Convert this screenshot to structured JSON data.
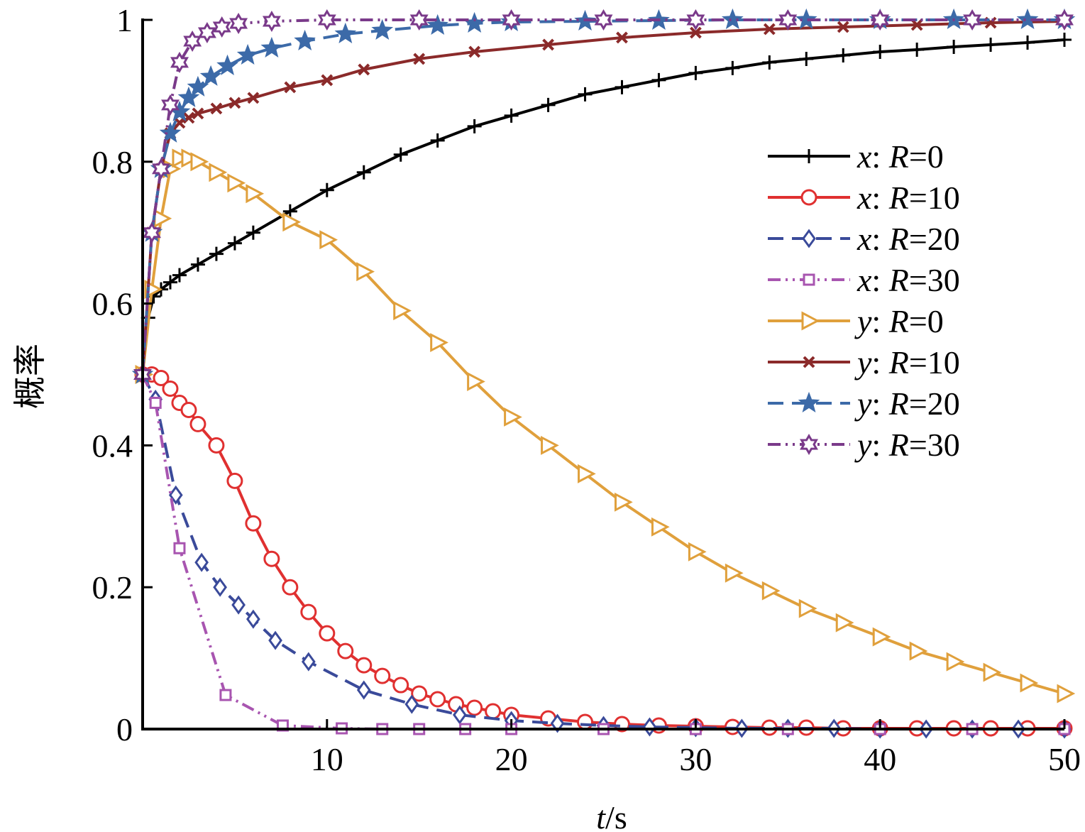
{
  "chart_data": {
    "type": "line",
    "title": "",
    "xlabel_var": "t",
    "xlabel_unit": "/s",
    "ylabel": "概率",
    "xlim": [
      0,
      50
    ],
    "ylim": [
      0,
      1
    ],
    "xticks": [
      10,
      20,
      30,
      40,
      50
    ],
    "xtick_labels": [
      "10",
      "20",
      "30",
      "40",
      "50"
    ],
    "yticks": [
      0,
      0.2,
      0.4,
      0.6,
      0.8,
      1
    ],
    "ytick_labels": [
      "0",
      "0.2",
      "0.4",
      "0.6",
      "0.8",
      "1"
    ],
    "grid": false,
    "legend_position": "right",
    "series": [
      {
        "name": "x: R=0",
        "var": "x",
        "param": "R",
        "value_label": "=0",
        "color": "#000000",
        "dash": "solid",
        "marker": "plus",
        "x": [
          0,
          0.3,
          0.6,
          1,
          1.5,
          2,
          3,
          4,
          5,
          6,
          8,
          10,
          12,
          14,
          16,
          18,
          20,
          22,
          24,
          26,
          28,
          30,
          32,
          34,
          36,
          38,
          40,
          42,
          44,
          46,
          48,
          50
        ],
        "y": [
          0.5,
          0.58,
          0.61,
          0.62,
          0.63,
          0.64,
          0.655,
          0.67,
          0.685,
          0.7,
          0.73,
          0.76,
          0.785,
          0.81,
          0.83,
          0.85,
          0.865,
          0.88,
          0.895,
          0.905,
          0.915,
          0.925,
          0.932,
          0.94,
          0.945,
          0.95,
          0.955,
          0.958,
          0.962,
          0.965,
          0.968,
          0.972
        ]
      },
      {
        "name": "x: R=10",
        "var": "x",
        "param": "R",
        "value_label": "=10",
        "color": "#e03030",
        "dash": "solid",
        "marker": "circle",
        "x": [
          0,
          0.5,
          1,
          1.5,
          2,
          2.5,
          3,
          4,
          5,
          6,
          7,
          8,
          9,
          10,
          11,
          12,
          13,
          14,
          15,
          16,
          17,
          18,
          19,
          20,
          22,
          24,
          26,
          28,
          30,
          32,
          34,
          36,
          38,
          40,
          42,
          44,
          46,
          48,
          50
        ],
        "y": [
          0.5,
          0.5,
          0.495,
          0.48,
          0.46,
          0.45,
          0.43,
          0.4,
          0.35,
          0.29,
          0.24,
          0.2,
          0.165,
          0.135,
          0.11,
          0.09,
          0.075,
          0.062,
          0.05,
          0.042,
          0.035,
          0.03,
          0.025,
          0.02,
          0.015,
          0.01,
          0.007,
          0.005,
          0.004,
          0.003,
          0.002,
          0.002,
          0.001,
          0.001,
          0.001,
          0.001,
          0.001,
          0.001,
          0.001
        ]
      },
      {
        "name": "x: R=20",
        "var": "x",
        "param": "R",
        "value_label": "=20",
        "color": "#3a4a9a",
        "dash": "dash",
        "marker": "diamond",
        "x": [
          0,
          0.7,
          1.8,
          3.2,
          4.2,
          5.2,
          6,
          7.2,
          9,
          12,
          14.6,
          17.2,
          20,
          22.5,
          25,
          27.5,
          30,
          32.5,
          35,
          37.5,
          40,
          42.5,
          45,
          47.5,
          50
        ],
        "y": [
          0.5,
          0.465,
          0.33,
          0.235,
          0.2,
          0.175,
          0.155,
          0.125,
          0.095,
          0.055,
          0.035,
          0.02,
          0.012,
          0.008,
          0.005,
          0.003,
          0.002,
          0.001,
          0.001,
          0.001,
          0.0,
          0.0,
          0.0,
          0.0,
          0.0
        ]
      },
      {
        "name": "x: R=30",
        "var": "x",
        "param": "R",
        "value_label": "=30",
        "color": "#a855b0",
        "dash": "dashdotdot",
        "marker": "square",
        "x": [
          0,
          0.7,
          2,
          4.5,
          7.6,
          10.8,
          13,
          15,
          17.5,
          20,
          25,
          30,
          35,
          40,
          45,
          50
        ],
        "y": [
          0.5,
          0.46,
          0.255,
          0.048,
          0.005,
          0.001,
          0.0,
          0.0,
          0.0,
          0.0,
          0.0,
          0.0,
          0.0,
          0.0,
          0.0,
          0.0
        ]
      },
      {
        "name": "y: R=0",
        "var": "y",
        "param": "R",
        "value_label": "=0",
        "color": "#e0a03c",
        "dash": "solid",
        "marker": "triangle-right",
        "x": [
          0,
          0.5,
          1,
          1.5,
          2,
          2.5,
          3,
          4,
          5,
          6,
          8,
          10,
          12,
          14,
          16,
          18,
          20,
          22,
          24,
          26,
          28,
          30,
          32,
          34,
          36,
          38,
          40,
          42,
          44,
          46,
          48,
          50
        ],
        "y": [
          0.5,
          0.62,
          0.72,
          0.79,
          0.805,
          0.805,
          0.8,
          0.785,
          0.77,
          0.755,
          0.715,
          0.69,
          0.645,
          0.59,
          0.545,
          0.49,
          0.44,
          0.4,
          0.36,
          0.32,
          0.285,
          0.25,
          0.22,
          0.195,
          0.17,
          0.15,
          0.13,
          0.11,
          0.095,
          0.08,
          0.065,
          0.05
        ]
      },
      {
        "name": "y: R=10",
        "var": "y",
        "param": "R",
        "value_label": "=10",
        "color": "#8b2a2a",
        "dash": "solid",
        "marker": "cross",
        "x": [
          0,
          0.5,
          1,
          1.5,
          2,
          2.5,
          3,
          4,
          5,
          6,
          8,
          10,
          12,
          15,
          18,
          22,
          26,
          30,
          34,
          38,
          42,
          46,
          50
        ],
        "y": [
          0.5,
          0.7,
          0.79,
          0.84,
          0.855,
          0.862,
          0.868,
          0.875,
          0.883,
          0.89,
          0.905,
          0.915,
          0.93,
          0.945,
          0.955,
          0.965,
          0.975,
          0.982,
          0.987,
          0.99,
          0.993,
          0.996,
          0.998
        ]
      },
      {
        "name": "y: R=20",
        "var": "y",
        "param": "R",
        "value_label": "=20",
        "color": "#3c6aa8",
        "dash": "dash",
        "marker": "star",
        "x": [
          0,
          0.5,
          1,
          1.5,
          2,
          2.5,
          3,
          3.7,
          4.6,
          5.7,
          7,
          8.8,
          11,
          13,
          16,
          18,
          20,
          24,
          28,
          32,
          36,
          40,
          44,
          48,
          50
        ],
        "y": [
          0.5,
          0.7,
          0.79,
          0.84,
          0.87,
          0.89,
          0.905,
          0.92,
          0.935,
          0.95,
          0.96,
          0.97,
          0.98,
          0.985,
          0.992,
          0.995,
          0.997,
          0.998,
          0.999,
          1.0,
          1.0,
          1.0,
          1.0,
          1.0,
          1.0
        ]
      },
      {
        "name": "y: R=30",
        "var": "y",
        "param": "R",
        "value_label": "=30",
        "color": "#7a3a8a",
        "dash": "dashdotdot",
        "marker": "hexagram",
        "x": [
          0,
          0.5,
          1,
          1.5,
          2,
          2.7,
          3.5,
          4.3,
          5.2,
          7,
          10,
          15,
          20,
          25,
          30,
          35,
          40,
          45,
          50
        ],
        "y": [
          0.5,
          0.7,
          0.79,
          0.88,
          0.94,
          0.97,
          0.982,
          0.99,
          0.995,
          0.998,
          1.0,
          1.0,
          1.0,
          1.0,
          1.0,
          1.0,
          1.0,
          1.0,
          1.0
        ]
      }
    ]
  }
}
